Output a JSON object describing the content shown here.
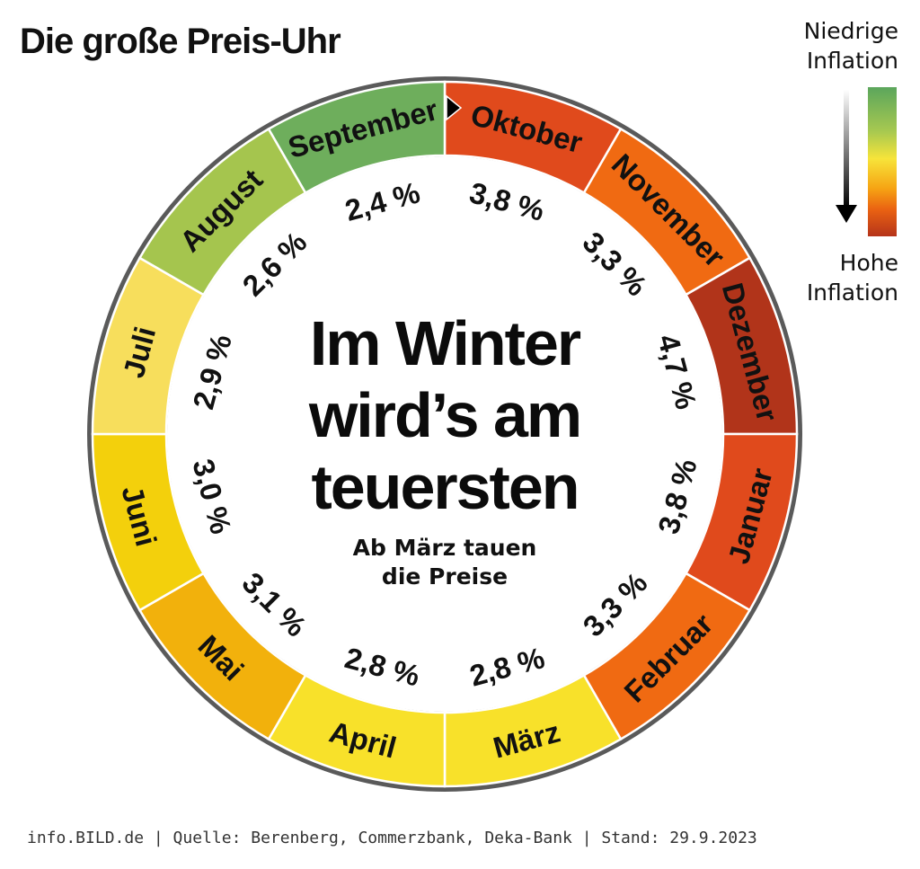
{
  "title": "Die große Preis-Uhr",
  "legend": {
    "low_label": "Niedrige Inflation",
    "high_label": "Hohe Inflation",
    "gradient_colors": [
      "#5ba65c",
      "#a8c950",
      "#f7e43a",
      "#f6a313",
      "#ea6212",
      "#b5341a"
    ]
  },
  "center": {
    "headline": [
      "Im Winter",
      "wird’s am",
      "teuersten"
    ],
    "subline": [
      "Ab März tauen",
      "die Preise"
    ]
  },
  "footer": "info.BILD.de | Quelle: Berenberg, Commerzbank, Deka-Bank | Stand: 29.9.2023",
  "chart_data": {
    "type": "pie",
    "title": "Die große Preis-Uhr",
    "unit": "%",
    "categories": [
      "Oktober",
      "November",
      "Dezember",
      "Januar",
      "Februar",
      "März",
      "April",
      "Mai",
      "Juni",
      "Juli",
      "August",
      "September"
    ],
    "values": [
      3.8,
      3.3,
      4.7,
      3.8,
      3.3,
      2.8,
      2.8,
      3.1,
      3.0,
      2.9,
      2.6,
      2.4
    ],
    "value_labels": [
      "3,8 %",
      "3,3 %",
      "4,7 %",
      "3,8 %",
      "3,3 %",
      "2,8 %",
      "2,8 %",
      "3,1 %",
      "3,0 %",
      "2,9 %",
      "2,6 %",
      "2,4 %"
    ],
    "colors": [
      "#e04a1c",
      "#f06a12",
      "#b1341a",
      "#e04a1c",
      "#f06a12",
      "#f8e12a",
      "#f8e12a",
      "#f2b10c",
      "#f3d00c",
      "#f7de5c",
      "#a5c54e",
      "#6eae5c"
    ],
    "start_marker": "Oktober"
  }
}
